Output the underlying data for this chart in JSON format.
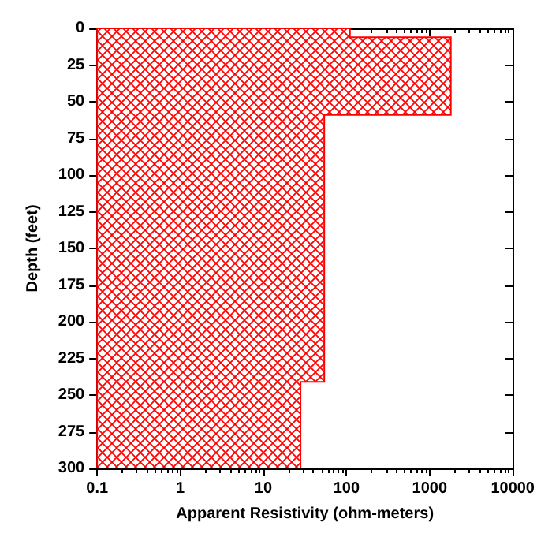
{
  "chart_data": {
    "type": "area",
    "orientation": "horizontal",
    "xlabel": "Apparent Resistivity (ohm-meters)",
    "ylabel": "Depth (feet)",
    "log": "x",
    "xlim": [
      0.1,
      10000
    ],
    "xticks": [
      0.1,
      1,
      10,
      100,
      1000,
      10000
    ],
    "ylim": [
      300,
      0
    ],
    "yticks": [
      0,
      25,
      50,
      75,
      100,
      125,
      150,
      175,
      200,
      225,
      250,
      275,
      300
    ],
    "x": [
      0,
      6,
      6,
      59,
      59,
      241,
      241,
      300
    ],
    "series": [
      {
        "color": "#ff0000",
        "values": [
          110,
          110,
          1800,
          1800,
          54,
          54,
          28,
          28
        ]
      }
    ],
    "grid": false
  }
}
